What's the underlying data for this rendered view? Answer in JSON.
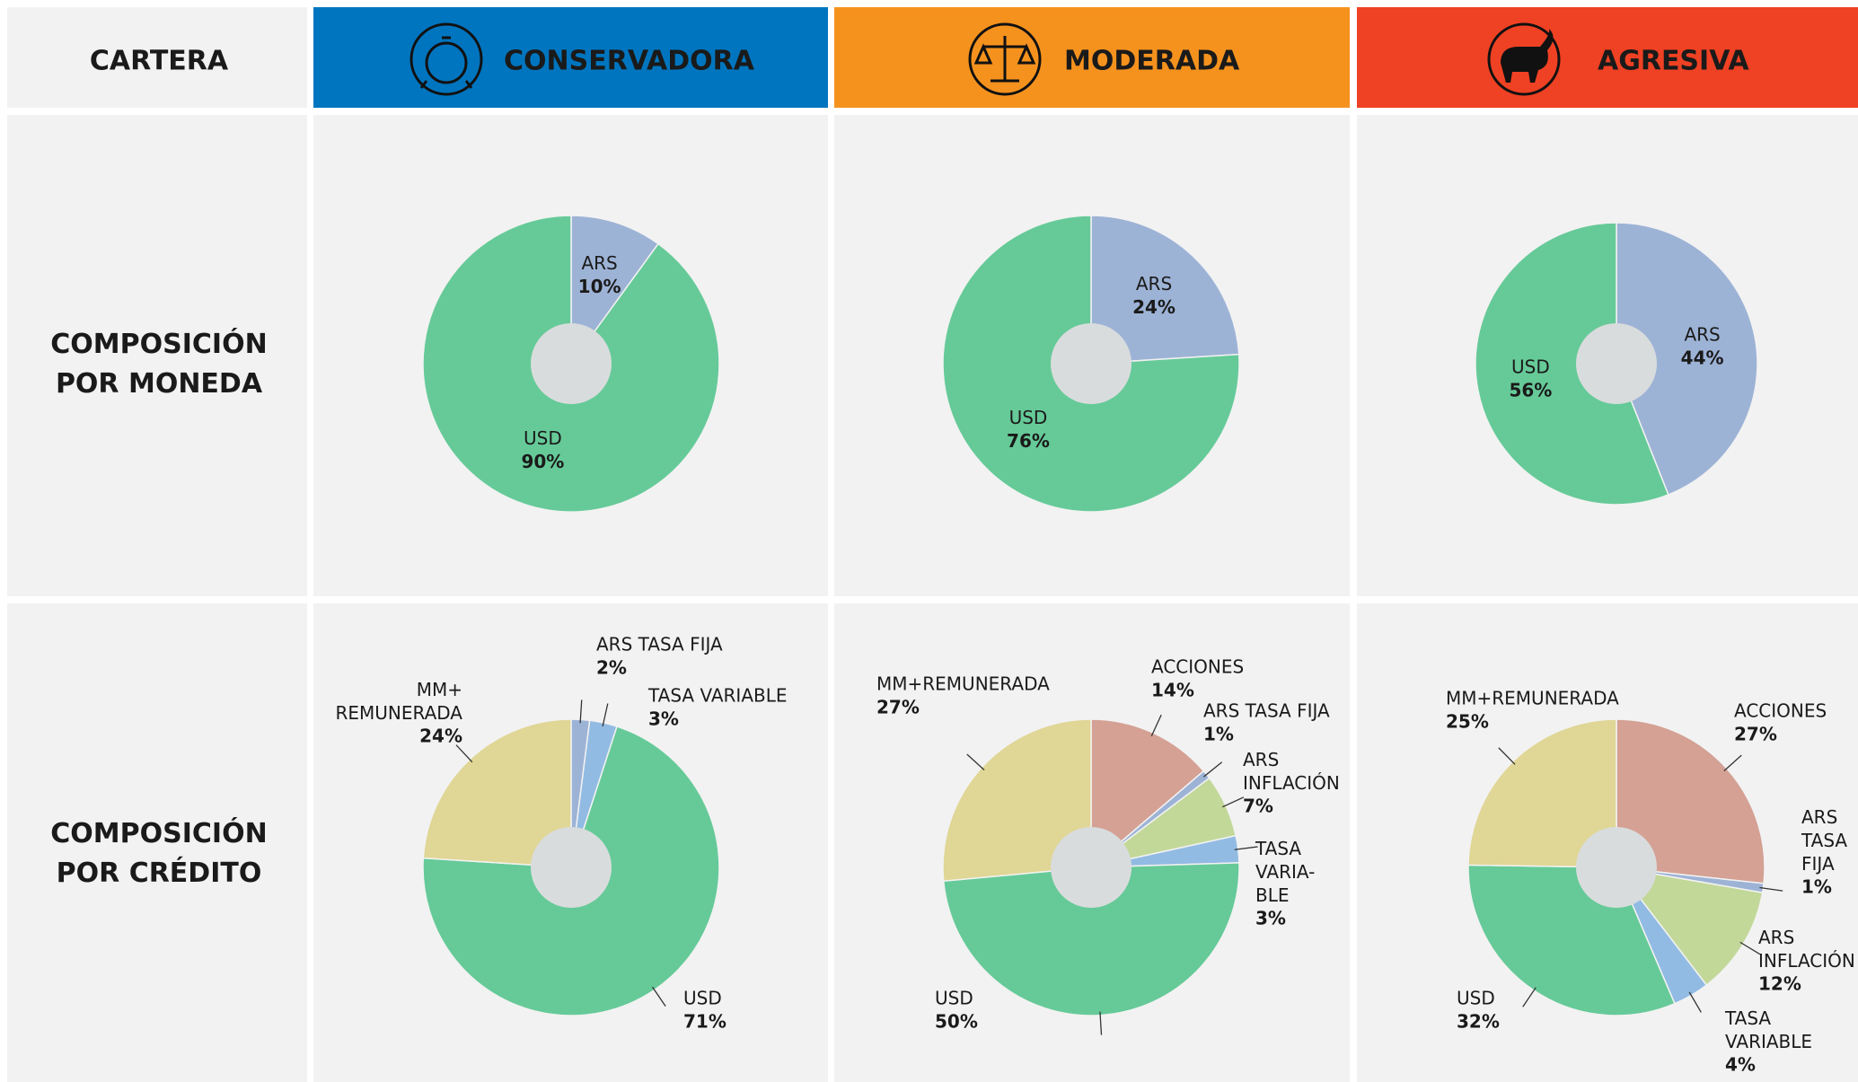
{
  "header": {
    "corner": "CARTERA",
    "columns": [
      "CONSERVADORA",
      "MODERADA",
      "AGRESIVA"
    ],
    "colors": [
      "#0075bf",
      "#f5921e",
      "#ef4123"
    ]
  },
  "rows": [
    "COMPOSICIÓN\nPOR MONEDA",
    "COMPOSICIÓN\nPOR CRÉDITO"
  ],
  "chart_data": [
    {
      "type": "pie",
      "categories": [
        "ARS",
        "USD"
      ],
      "values": [
        10,
        90
      ],
      "value_labels": [
        "10%",
        "90%"
      ],
      "colors": [
        "#9db3d6",
        "#66ca98"
      ]
    },
    {
      "type": "pie",
      "categories": [
        "ARS",
        "USD"
      ],
      "values": [
        24,
        76
      ],
      "value_labels": [
        "24%",
        "76%"
      ],
      "colors": [
        "#9db3d6",
        "#66ca98"
      ]
    },
    {
      "type": "pie",
      "categories": [
        "ARS",
        "USD"
      ],
      "values": [
        44,
        56
      ],
      "value_labels": [
        "44%",
        "56%"
      ],
      "colors": [
        "#9db3d6",
        "#66ca98"
      ]
    },
    {
      "type": "pie",
      "categories": [
        "ARS TASA FIJA",
        "TASA VARIABLE",
        "USD",
        "MM+\nREMUNERADA"
      ],
      "values": [
        2,
        3,
        71,
        24
      ],
      "value_labels": [
        "2%",
        "3%",
        "71%",
        "24%"
      ],
      "colors": [
        "#9db3d6",
        "#92bbe3",
        "#66ca98",
        "#e0d696"
      ]
    },
    {
      "type": "pie",
      "categories": [
        "ACCIONES",
        "ARS TASA FIJA",
        "ARS\nINFLACIÓN",
        "TASA\nVARIA-\nBLE",
        "USD",
        "MM+REMUNERADA"
      ],
      "values": [
        14,
        1,
        7,
        3,
        50,
        27
      ],
      "value_labels": [
        "14%",
        "1%",
        "7%",
        "3%",
        "50%",
        "27%"
      ],
      "colors": [
        "#d4a194",
        "#9db3d6",
        "#c2d899",
        "#92bbe3",
        "#66ca98",
        "#e0d696"
      ]
    },
    {
      "type": "pie",
      "categories": [
        "ACCIONES",
        "ARS\nTASA\nFIJA",
        "ARS\nINFLACIÓN",
        "TASA\nVARIABLE",
        "USD",
        "MM+REMUNERADA"
      ],
      "values": [
        27,
        1,
        12,
        4,
        32,
        25
      ],
      "value_labels": [
        "27%",
        "1%",
        "12%",
        "4%",
        "32%",
        "25%"
      ],
      "colors": [
        "#d4a194",
        "#9db3d6",
        "#c2d899",
        "#92bbe3",
        "#66ca98",
        "#e0d696"
      ]
    }
  ]
}
